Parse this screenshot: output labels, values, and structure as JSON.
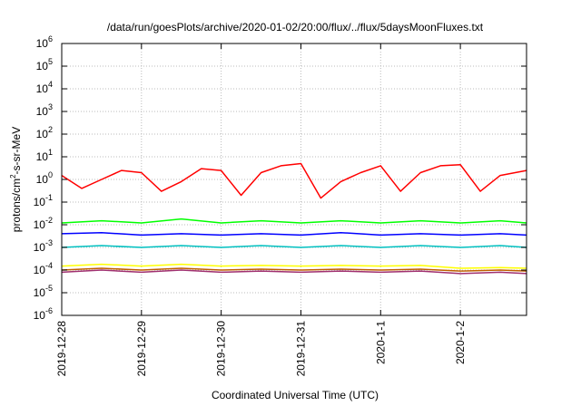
{
  "chart_data": {
    "type": "line",
    "title": "/data/run/goesPlots/archive/2020-01-02/20:00/flux/../flux/5daysMoonFluxes.txt",
    "xlabel": "Coordinated Universal Time (UTC)",
    "ylabel": {
      "prefix": "protons/cm",
      "sup": "2",
      "suffix": "-s-sr-MeV"
    },
    "yscale": "log",
    "ylim_exp": [
      -6,
      6
    ],
    "ytick_exponents": [
      -6,
      -5,
      -4,
      -3,
      -2,
      -1,
      0,
      1,
      2,
      3,
      4,
      5,
      6
    ],
    "ytick_base": "10",
    "x_range_days": [
      "2019-12-28",
      "2020-01-02T20:00"
    ],
    "xticks": [
      {
        "day": 0,
        "label": "2019-12-28"
      },
      {
        "day": 1,
        "label": "2019-12-29"
      },
      {
        "day": 2,
        "label": "2019-12-30"
      },
      {
        "day": 3,
        "label": "2019-12-31"
      },
      {
        "day": 4,
        "label": "2020-1-1"
      },
      {
        "day": 5,
        "label": "2020-1-2"
      }
    ],
    "grid": true,
    "legend": "none",
    "series_style": [
      {
        "color": "#ff0000"
      },
      {
        "color": "#00ff00"
      },
      {
        "color": "#0000ff"
      },
      {
        "color": "#00c0c0"
      },
      {
        "color": "#ffff00"
      },
      {
        "color": "#c06000"
      },
      {
        "color": "#a03070"
      }
    ],
    "series": [
      {
        "color": "#ff0000",
        "x": [
          0.0,
          0.25,
          0.5,
          0.75,
          1.0,
          1.25,
          1.5,
          1.75,
          2.0,
          2.25,
          2.5,
          2.75,
          3.0,
          3.25,
          3.5,
          3.75,
          4.0,
          4.25,
          4.5,
          4.75,
          5.0,
          5.25,
          5.5,
          5.83
        ],
        "y": [
          1.5,
          0.4,
          1.0,
          2.5,
          2.0,
          0.3,
          0.8,
          3.0,
          2.5,
          0.2,
          2.0,
          4.0,
          5.0,
          0.15,
          0.8,
          2.0,
          4.0,
          0.3,
          2.0,
          4.0,
          4.5,
          0.3,
          1.5,
          2.5
        ]
      },
      {
        "color": "#00ff00",
        "x": [
          0.0,
          0.5,
          1.0,
          1.5,
          2.0,
          2.5,
          3.0,
          3.5,
          4.0,
          4.5,
          5.0,
          5.5,
          5.83
        ],
        "y": [
          0.012,
          0.015,
          0.012,
          0.018,
          0.012,
          0.015,
          0.012,
          0.015,
          0.012,
          0.015,
          0.012,
          0.015,
          0.012
        ]
      },
      {
        "color": "#0000ff",
        "x": [
          0.0,
          0.5,
          1.0,
          1.5,
          2.0,
          2.5,
          3.0,
          3.5,
          4.0,
          4.5,
          5.0,
          5.5,
          5.83
        ],
        "y": [
          0.004,
          0.0045,
          0.0035,
          0.004,
          0.0035,
          0.004,
          0.0035,
          0.0045,
          0.0035,
          0.004,
          0.0035,
          0.004,
          0.0035
        ]
      },
      {
        "color": "#00c0c0",
        "x": [
          0.0,
          0.5,
          1.0,
          1.5,
          2.0,
          2.5,
          3.0,
          3.5,
          4.0,
          4.5,
          5.0,
          5.5,
          5.83
        ],
        "y": [
          0.001,
          0.0012,
          0.001,
          0.0012,
          0.001,
          0.0012,
          0.001,
          0.0012,
          0.001,
          0.0012,
          0.001,
          0.0012,
          0.001
        ]
      },
      {
        "color": "#ffff00",
        "x": [
          0.0,
          0.5,
          1.0,
          1.5,
          2.0,
          2.5,
          3.0,
          3.5,
          4.0,
          4.5,
          5.0,
          5.5,
          5.83
        ],
        "y": [
          0.00015,
          0.00018,
          0.00015,
          0.00018,
          0.00015,
          0.00016,
          0.00015,
          0.00016,
          0.00015,
          0.00016,
          0.00012,
          0.00013,
          0.00012
        ]
      },
      {
        "color": "#c06000",
        "x": [
          0.0,
          0.5,
          1.0,
          1.5,
          2.0,
          2.5,
          3.0,
          3.5,
          4.0,
          4.5,
          5.0,
          5.5,
          5.83
        ],
        "y": [
          0.0001,
          0.00012,
          0.0001,
          0.00012,
          0.0001,
          0.00011,
          0.0001,
          0.00011,
          0.0001,
          0.00011,
          9e-05,
          0.0001,
          9e-05
        ]
      },
      {
        "color": "#a03070",
        "x": [
          0.0,
          0.5,
          1.0,
          1.5,
          2.0,
          2.5,
          3.0,
          3.5,
          4.0,
          4.5,
          5.0,
          5.5,
          5.83
        ],
        "y": [
          8e-05,
          0.0001,
          8e-05,
          0.0001,
          8e-05,
          9e-05,
          8e-05,
          9e-05,
          8e-05,
          9e-05,
          7e-05,
          8e-05,
          7e-05
        ]
      }
    ]
  }
}
